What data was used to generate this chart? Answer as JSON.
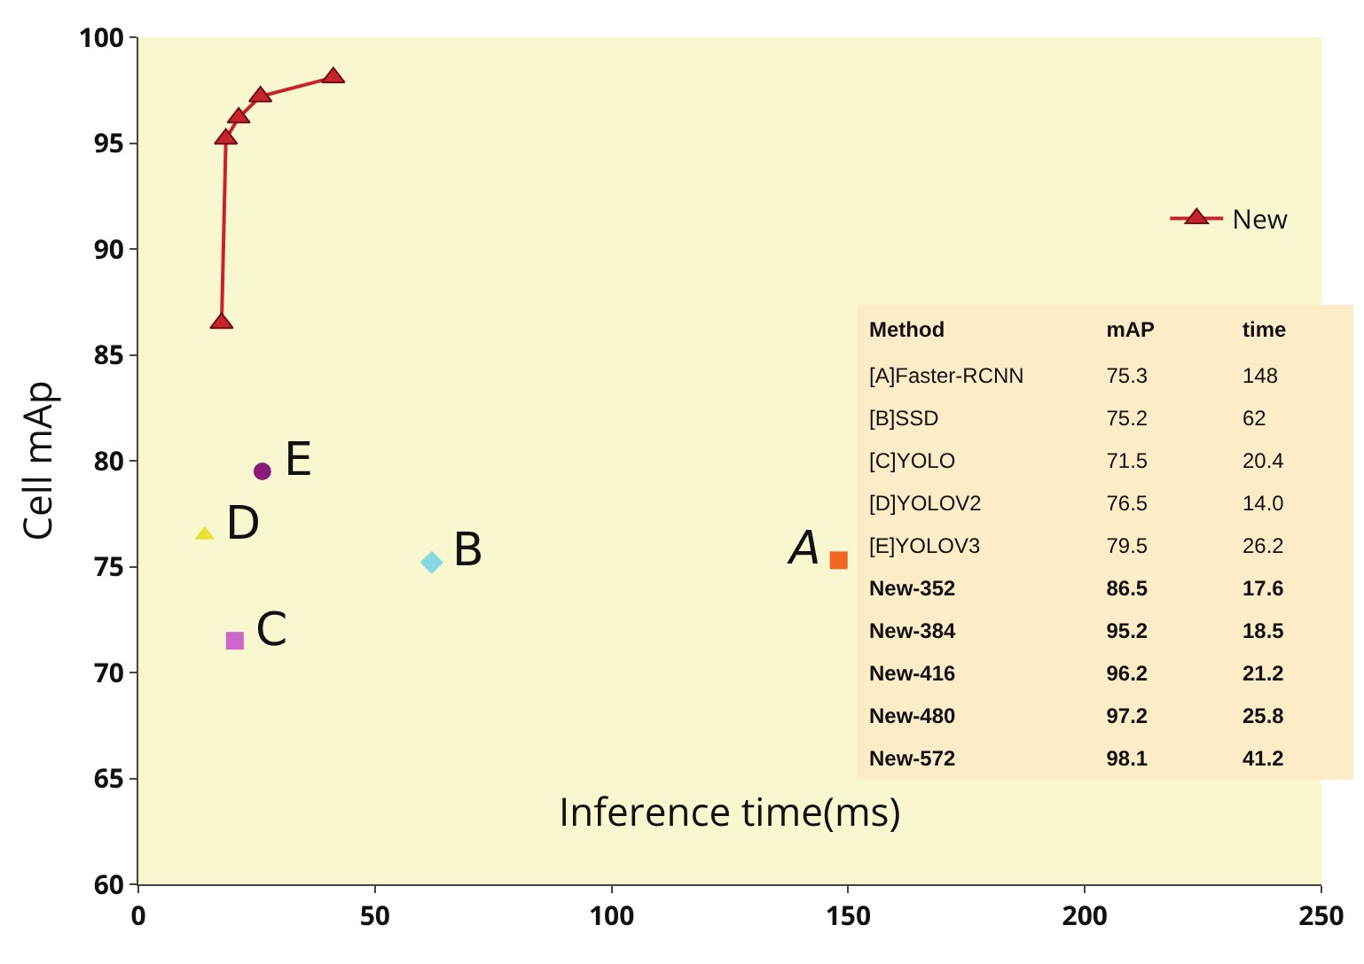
{
  "chart_data": [
    {
      "type": "scatter",
      "xlabel": "Inference time(ms)",
      "ylabel": "Cell mAp",
      "xlim": [
        0,
        250
      ],
      "xticks": [
        0,
        50,
        100,
        150,
        200,
        250
      ],
      "ylim": [
        60,
        100
      ],
      "yticks": [
        60,
        65,
        70,
        75,
        80,
        85,
        90,
        95,
        100
      ],
      "grid": false,
      "legend": "top right",
      "series": [
        {
          "name": "A",
          "type": "scatter",
          "marker": "square",
          "color": "#f26522",
          "x": [
            148
          ],
          "values": [
            75.3
          ]
        },
        {
          "name": "B",
          "type": "scatter",
          "marker": "diamond",
          "color": "#86d8e2",
          "x": [
            62
          ],
          "values": [
            75.2
          ]
        },
        {
          "name": "C",
          "type": "scatter",
          "marker": "square",
          "color": "#cc66cc",
          "x": [
            20.4
          ],
          "values": [
            71.5
          ]
        },
        {
          "name": "D",
          "type": "scatter",
          "marker": "triangle",
          "color": "#e8e233",
          "x": [
            14.0
          ],
          "values": [
            76.5
          ]
        },
        {
          "name": "E",
          "type": "scatter",
          "marker": "circle",
          "color": "#8b1a7a",
          "x": [
            26.2
          ],
          "values": [
            79.5
          ]
        },
        {
          "name": "New",
          "type": "line",
          "marker": "triangle",
          "line_style": "solid",
          "color": "#c8232c",
          "x": [
            17.6,
            18.5,
            21.2,
            25.8,
            41.2
          ],
          "values": [
            86.5,
            95.2,
            96.2,
            97.2,
            98.1
          ]
        }
      ]
    },
    {
      "type": "other",
      "annotations": [
        "Method",
        "mAP",
        "time",
        "[A]Faster-RCNN",
        "75.3",
        "148",
        "[B]SSD",
        "75.2",
        "62",
        "[C]YOLO",
        "71.5",
        "20.4",
        "[D]YOLOV2",
        "76.5",
        "14.0",
        "[E]YOLOV3",
        "79.5",
        "26.2",
        "New-352",
        "86.5",
        "17.6",
        "New-384",
        "95.2",
        "18.5",
        "New-416",
        "96.2",
        "21.2",
        "New-480",
        "97.2",
        "25.8",
        "New-572",
        "98.1",
        "41.2"
      ]
    }
  ]
}
